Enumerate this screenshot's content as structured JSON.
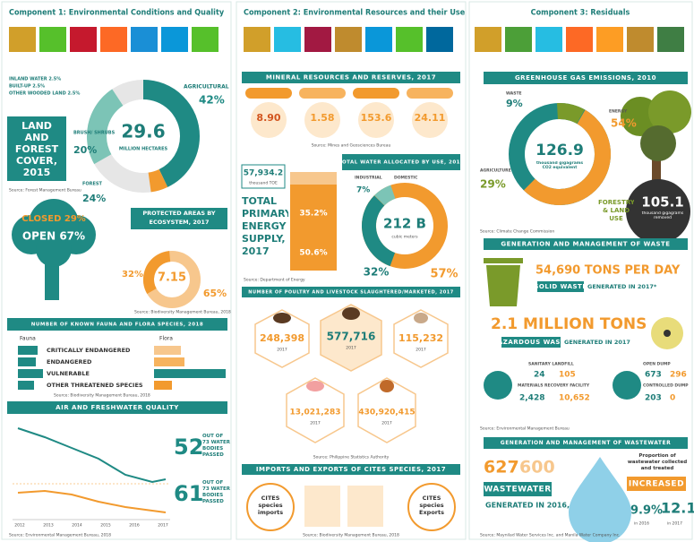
{
  "c1": {
    "title": "Component 1: Environmental Conditions and Quality",
    "land": {
      "title": "LAND AND FOREST COVER, 2015",
      "total": "29.6",
      "unit": "MILLION HECTARES",
      "small": [
        "INLAND WATER 2.5%",
        "BUILT-UP 2.5%",
        "OTHER WOODED LAND 2.5%"
      ],
      "agri": "AGRICULTURAL",
      "agri_pct": "42%",
      "brush": "BRUSH/ SHRUBS",
      "brush_pct": "20%",
      "forest": "FOREST",
      "forest_pct": "24%",
      "source": "Source: Forest Management Bureau"
    },
    "forest": {
      "closed": "CLOSED 29%",
      "open": "OPEN 67%"
    },
    "protected": {
      "title": "PROTECTED AREAS BY ECOSYSTEM, 2017",
      "total": "7.15",
      "left": "32%",
      "right": "65%",
      "source": "Source: Biodiversity Management Bureau, 2018"
    },
    "species": {
      "title": "NUMBER OF KNOWN FAUNA AND FLORA SPECIES, 2018",
      "fauna": "Fauna",
      "flora": "Flora",
      "rows": [
        "CRITICALLY ENDANGERED",
        "ENDANGERED",
        "VULNERABLE",
        "OTHER THREATENED SPECIES"
      ],
      "source": "Source: Biodiversity Management Bureau, 2018"
    },
    "air": {
      "title": "AIR AND FRESHWATER QUALITY",
      "years": [
        "2012",
        "2013",
        "2014",
        "2015",
        "2016",
        "2017"
      ],
      "n1": "52",
      "t1": "OUT OF 73 WATER BODIES PASSED",
      "n2": "61",
      "t2": "OUT OF 73 WATER BODIES PASSED",
      "source": "Source: Environmental Management Bureau, 2018"
    }
  },
  "c2": {
    "title": "Component 2: Environmental Resources and their Use",
    "minerals": {
      "title": "MINERAL RESOURCES AND RESERVES, 2017",
      "values": [
        "8.90",
        "1.58",
        "153.6",
        "24.11"
      ],
      "source": "Source: Mines and Geosciences Bureau"
    },
    "energy": {
      "total": "57,934.2",
      "unit": "thousand TOE",
      "title": "TOTAL PRIMARY ENERGY SUPPLY, 2017",
      "p1": "35.2%",
      "p2": "50.6%",
      "source": "Source: Department of Energy"
    },
    "water": {
      "title": "TOTAL WATER ALLOCATED BY USE, 2017",
      "total": "212 B",
      "unit": "cubic meters",
      "industrial": "INDUSTRIAL",
      "domestic": "DOMESTIC",
      "p1": "7%",
      "p2": "32%",
      "p3": "57%"
    },
    "livestock": {
      "title": "NUMBER OF POULTRY AND LIVESTOCK SLAUGHTERED/MARKETED, 2017",
      "values": [
        "248,398",
        "577,716",
        "115,232",
        "13,021,283",
        "430,920,415"
      ],
      "year": "2017",
      "source": "Source: Philippine Statistics Authority"
    },
    "cites": {
      "title": "IMPORTS AND EXPORTS OF CITES SPECIES, 2017",
      "imports": "CITES species imports",
      "exports": "CITES species Exports",
      "source": "Source: Biodiversity Management Bureau, 2018"
    }
  },
  "c3": {
    "title": "Component 3: Residuals",
    "ghg": {
      "title": "GREENHOUSE GAS EMISSIONS, 2010",
      "waste": "WASTE",
      "waste_pct": "9%",
      "energy": "ENERGY",
      "energy_pct": "54%",
      "agri": "AGRICULTURE",
      "agri_pct": "29%",
      "total": "126.9",
      "unit": "thousand gigagrams CO2 equivalent",
      "forestry": "FORESTRY & LAND USE",
      "removed": "105.1",
      "removed_unit": "thousand gigagrams removed",
      "source": "Source: Climate Change Commission"
    },
    "waste": {
      "title": "GENERATION AND MANAGEMENT OF WASTE",
      "solid": "54,690 TONS PER DAY",
      "solid_label": "SOLID WASTE",
      "solid_gen": "GENERATED IN 2017*",
      "haz": "2.1 MILLION TONS",
      "haz_label": "HAZARDOUS WASTE",
      "haz_gen": "GENERATED IN 2017",
      "landfill": "SANITARY LANDFILL",
      "landfill_v": [
        "24",
        "105"
      ],
      "mrf": "MATERIALS RECOVERY FACILITY",
      "mrf_v": [
        "2,428",
        "10,652"
      ],
      "open": "OPEN DUMP",
      "open_v": [
        "673",
        "296"
      ],
      "controlled": "CONTROLLED DUMP",
      "controlled_v": [
        "203",
        "0"
      ],
      "source": "Source: Environmental Management Bureau"
    },
    "wastewater": {
      "title": "GENERATION AND MANAGEMENT OF WASTEWATER",
      "v1": "627",
      "v2": "600",
      "label": "WASTEWATER",
      "gen": "GENERATED IN 2016, 2017",
      "prop": "Proportion of wastewater collected and treated",
      "inc": "INCREASED",
      "p1": "9.9%",
      "y1": "in 2016",
      "p2": "12.1%",
      "y2": "in 2017",
      "source": "Source: Maynilad Water Services Inc. and Manila Water Company Inc."
    }
  }
}
